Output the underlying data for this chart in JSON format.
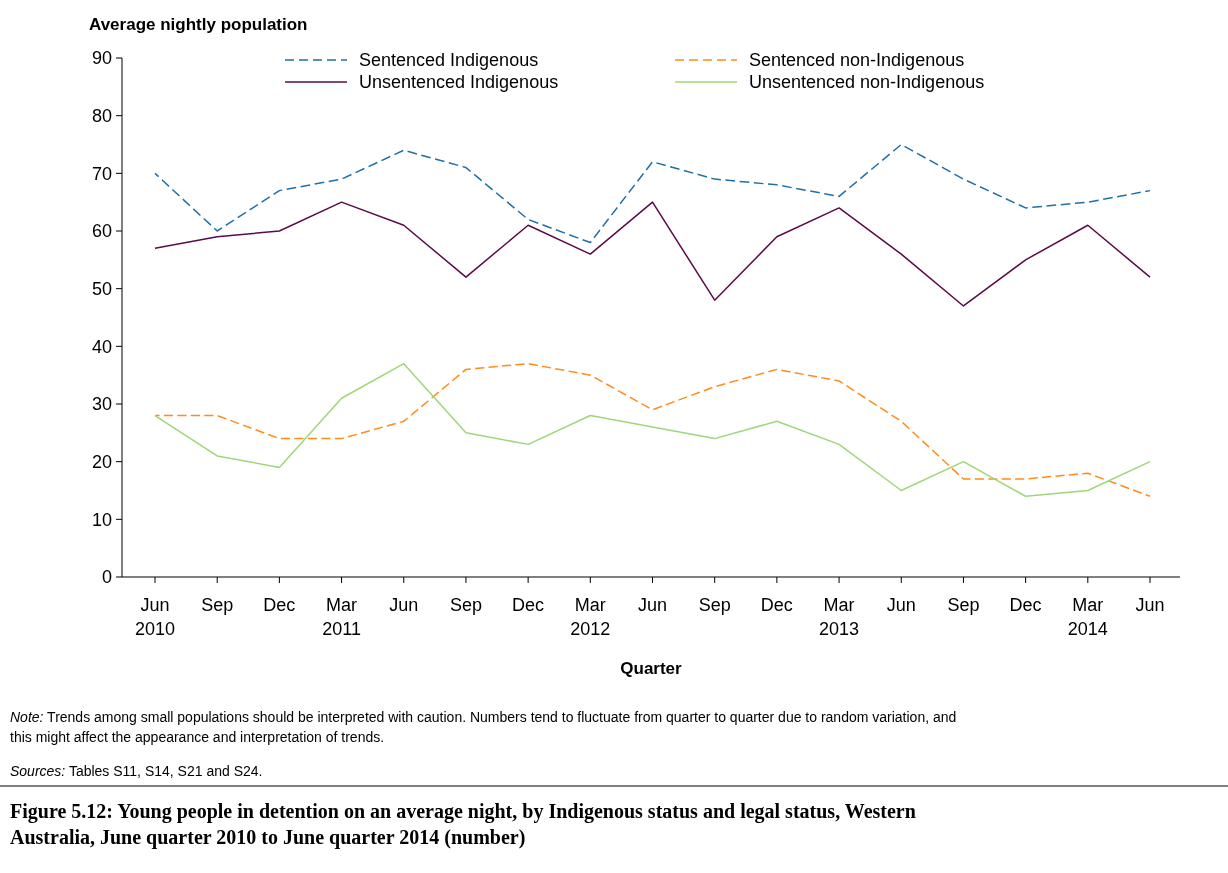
{
  "chart_data": {
    "type": "line",
    "title": "Figure 5.12: Young people in detention on an average night, by Indigenous status and legal status, Western Australia, June quarter 2010 to June quarter 2014 (number)",
    "xlabel": "Quarter",
    "ylabel": "Average nightly population",
    "categories": [
      "Jun\n2010",
      "Sep",
      "Dec",
      "Mar\n2011",
      "Jun",
      "Sep",
      "Dec",
      "Mar\n2012",
      "Jun",
      "Sep",
      "Dec",
      "Mar\n2013",
      "Jun",
      "Sep",
      "Dec",
      "Mar\n2014",
      "Jun"
    ],
    "series": [
      {
        "name": "Sentenced Indigenous",
        "color": "#1f6fa8",
        "line_style": "dashed",
        "values": [
          70,
          60,
          67,
          69,
          74,
          71,
          62,
          58,
          72,
          69,
          68,
          66,
          75,
          69,
          64,
          65,
          67
        ]
      },
      {
        "name": "Sentenced non-Indigenous",
        "color": "#ff8c1a",
        "line_style": "dashed",
        "values": [
          28,
          28,
          24,
          24,
          27,
          36,
          37,
          35,
          29,
          33,
          36,
          34,
          27,
          17,
          17,
          18,
          14
        ]
      },
      {
        "name": "Unsentenced Indigenous",
        "color": "#5c0a48",
        "line_style": "solid",
        "values": [
          57,
          59,
          60,
          65,
          61,
          52,
          61,
          56,
          65,
          48,
          59,
          64,
          56,
          47,
          55,
          61,
          52
        ]
      },
      {
        "name": "Unsentenced non-Indigenous",
        "color": "#9fd67a",
        "line_style": "solid",
        "values": [
          28,
          21,
          19,
          31,
          37,
          25,
          23,
          28,
          26,
          24,
          27,
          23,
          15,
          20,
          14,
          15,
          20
        ]
      }
    ],
    "ylim": [
      0,
      90
    ],
    "yticks": [
      0,
      10,
      20,
      30,
      40,
      50,
      60,
      70,
      80,
      90
    ],
    "grid": false,
    "legend": "top",
    "annotations": [
      "Note: Trends among small populations should be interpreted with caution. Numbers tend to fluctuate from quarter to quarter due to random variation, and this might affect the appearance and interpretation of trends.",
      "Sources: Tables S11, S14, S21 and S24."
    ]
  }
}
